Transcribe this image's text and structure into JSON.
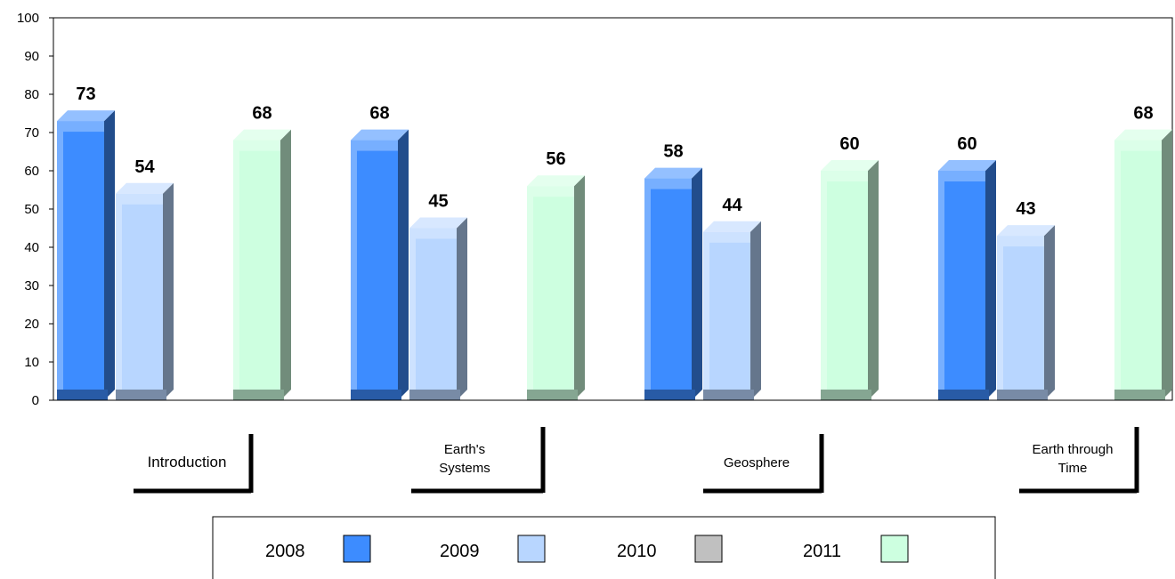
{
  "chart_data": {
    "type": "bar",
    "categories": [
      "Introduction",
      "Earth's Systems",
      "Geosphere",
      "Earth through Time"
    ],
    "category_lines": [
      [
        "Introduction"
      ],
      [
        "Earth's",
        "Systems"
      ],
      [
        "Geosphere"
      ],
      [
        "Earth through",
        "Time"
      ]
    ],
    "series": [
      {
        "name": "2008",
        "color": "#3d8cff",
        "values": [
          73,
          68,
          58,
          60
        ]
      },
      {
        "name": "2009",
        "color": "#b8d6ff",
        "values": [
          54,
          45,
          44,
          43
        ]
      },
      {
        "name": "2010",
        "color": "#c0c0c0",
        "values": [
          null,
          null,
          null,
          null
        ]
      },
      {
        "name": "2011",
        "color": "#cdffe0",
        "values": [
          68,
          56,
          60,
          68
        ]
      }
    ],
    "ylim": [
      0,
      100
    ],
    "yticks": [
      0,
      10,
      20,
      30,
      40,
      50,
      60,
      70,
      80,
      90,
      100
    ],
    "grid": false,
    "legend_position": "bottom",
    "data_labels": true
  }
}
